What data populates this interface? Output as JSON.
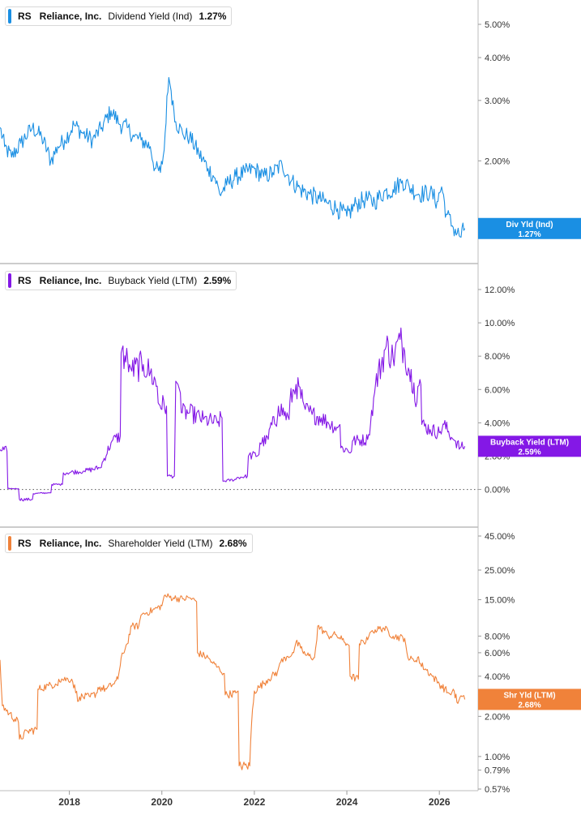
{
  "chart_data": [
    {
      "type": "line",
      "ticker": "RS",
      "company": "Reliance, Inc.",
      "metric": "Dividend Yield (Ind)",
      "latest_value": "1.27%",
      "badge_label": "Div Yld (Ind)",
      "badge_value": "1.27%",
      "color": "#1a8fe3",
      "scale": "log",
      "ylim": [
        1.15,
        5.0
      ],
      "y_ticks": [
        {
          "v": 5.0,
          "label": "5.00%"
        },
        {
          "v": 4.0,
          "label": "4.00%"
        },
        {
          "v": 3.0,
          "label": "3.00%"
        },
        {
          "v": 2.0,
          "label": "2.00%"
        }
      ],
      "noise": 0.05,
      "x": [
        2016.5,
        2016.6,
        2016.75,
        2016.95,
        2017.2,
        2017.4,
        2017.6,
        2017.75,
        2017.9,
        2018.1,
        2018.3,
        2018.5,
        2018.7,
        2018.9,
        2019.1,
        2019.25,
        2019.4,
        2019.55,
        2019.75,
        2019.85,
        2019.97,
        2020.05,
        2020.15,
        2020.2,
        2020.3,
        2020.45,
        2020.6,
        2020.8,
        2021.0,
        2021.15,
        2021.25,
        2021.4,
        2021.6,
        2021.8,
        2022.0,
        2022.2,
        2022.4,
        2022.6,
        2022.8,
        2023.0,
        2023.2,
        2023.4,
        2023.6,
        2023.8,
        2024.0,
        2024.2,
        2024.4,
        2024.6,
        2024.8,
        2025.0,
        2025.2,
        2025.35,
        2025.55,
        2025.8,
        2025.95,
        2026.05,
        2026.15,
        2026.3,
        2026.45,
        2026.55
      ],
      "values": [
        2.5,
        2.2,
        2.05,
        2.25,
        2.5,
        2.35,
        2.0,
        2.2,
        2.3,
        2.55,
        2.4,
        2.3,
        2.5,
        2.8,
        2.55,
        2.5,
        2.35,
        2.3,
        2.2,
        1.9,
        1.85,
        2.15,
        3.5,
        3.2,
        2.6,
        2.4,
        2.35,
        2.1,
        1.9,
        1.78,
        1.6,
        1.7,
        1.8,
        1.85,
        1.9,
        1.8,
        1.85,
        1.95,
        1.75,
        1.65,
        1.6,
        1.55,
        1.5,
        1.45,
        1.38,
        1.5,
        1.55,
        1.52,
        1.62,
        1.65,
        1.75,
        1.68,
        1.6,
        1.62,
        1.52,
        1.68,
        1.4,
        1.28,
        1.2,
        1.27
      ]
    },
    {
      "type": "line",
      "ticker": "RS",
      "company": "Reliance, Inc.",
      "metric": "Buyback Yield (LTM)",
      "latest_value": "2.59%",
      "badge_label": "Buyback Yield (LTM)",
      "badge_value": "2.59%",
      "color": "#8418e6",
      "scale": "linear",
      "ylim": [
        -0.8,
        12.0
      ],
      "zero_line": true,
      "y_ticks": [
        {
          "v": 12.0,
          "label": "12.00%"
        },
        {
          "v": 10.0,
          "label": "10.00%"
        },
        {
          "v": 8.0,
          "label": "8.00%"
        },
        {
          "v": 6.0,
          "label": "6.00%"
        },
        {
          "v": 4.0,
          "label": "4.00%"
        },
        {
          "v": 2.0,
          "label": "2.00%"
        },
        {
          "v": 0.0,
          "label": "0.00%"
        }
      ],
      "noise": 0.12,
      "x": [
        2016.5,
        2016.65,
        2016.67,
        2016.9,
        2016.92,
        2017.2,
        2017.22,
        2017.55,
        2017.6,
        2017.62,
        2017.85,
        2017.87,
        2018.3,
        2018.32,
        2018.65,
        2018.67,
        2018.9,
        2018.92,
        2019.1,
        2019.12,
        2019.3,
        2019.35,
        2019.6,
        2019.75,
        2019.9,
        2019.92,
        2020.1,
        2020.12,
        2020.27,
        2020.3,
        2020.35,
        2020.4,
        2020.42,
        2020.6,
        2020.9,
        2021.2,
        2021.3,
        2021.32,
        2021.6,
        2021.62,
        2021.85,
        2021.87,
        2022.1,
        2022.12,
        2022.3,
        2022.32,
        2022.5,
        2022.52,
        2022.75,
        2022.77,
        2022.9,
        2023.05,
        2023.1,
        2023.25,
        2023.45,
        2023.6,
        2023.8,
        2023.85,
        2023.87,
        2024.1,
        2024.12,
        2024.45,
        2024.47,
        2024.6,
        2024.62,
        2024.85,
        2025.0,
        2025.15,
        2025.25,
        2025.35,
        2025.45,
        2025.47,
        2025.58,
        2025.6,
        2025.62,
        2025.8,
        2026.0,
        2026.1,
        2026.3,
        2026.35,
        2026.45,
        2026.55
      ],
      "values": [
        2.4,
        2.3,
        0.05,
        0.05,
        -0.6,
        -0.6,
        -0.25,
        -0.2,
        -0.2,
        0.3,
        0.3,
        1.0,
        1.1,
        1.1,
        1.3,
        1.3,
        2.8,
        2.9,
        3.2,
        8.2,
        7.5,
        7.1,
        7.5,
        7.0,
        6.2,
        5.2,
        5.0,
        0.8,
        0.8,
        6.5,
        6.3,
        5.8,
        4.6,
        4.6,
        4.2,
        4.0,
        4.3,
        0.5,
        0.6,
        0.7,
        0.8,
        2.0,
        2.1,
        2.8,
        3.0,
        3.6,
        4.3,
        5.0,
        4.2,
        5.3,
        6.3,
        5.3,
        4.8,
        4.5,
        4.3,
        4.0,
        3.7,
        3.9,
        2.5,
        2.3,
        2.9,
        3.0,
        3.3,
        5.8,
        6.3,
        8.6,
        7.9,
        9.0,
        8.3,
        7.1,
        6.4,
        5.3,
        6.6,
        6.3,
        3.9,
        3.6,
        3.4,
        3.9,
        3.0,
        2.9,
        2.5,
        2.59
      ]
    },
    {
      "type": "line",
      "ticker": "RS",
      "company": "Reliance, Inc.",
      "metric": "Shareholder Yield (LTM)",
      "latest_value": "2.68%",
      "badge_label": "Shr Yld (LTM)",
      "badge_value": "2.68%",
      "color": "#f0823a",
      "scale": "log",
      "ylim": [
        0.57,
        45.0
      ],
      "y_ticks": [
        {
          "v": 45.0,
          "label": "45.00%"
        },
        {
          "v": 25.0,
          "label": "25.00%"
        },
        {
          "v": 15.0,
          "label": "15.00%"
        },
        {
          "v": 8.0,
          "label": "8.00%"
        },
        {
          "v": 6.0,
          "label": "6.00%"
        },
        {
          "v": 4.0,
          "label": "4.00%"
        },
        {
          "v": 2.0,
          "label": "2.00%"
        },
        {
          "v": 1.0,
          "label": "1.00%"
        },
        {
          "v": 0.79,
          "label": "0.79%"
        },
        {
          "v": 0.57,
          "label": "0.57%"
        }
      ],
      "noise": 0.06,
      "x": [
        2016.5,
        2016.52,
        2016.55,
        2016.7,
        2016.9,
        2016.92,
        2017.1,
        2017.3,
        2017.32,
        2017.55,
        2017.7,
        2017.75,
        2017.77,
        2018.05,
        2018.2,
        2018.22,
        2018.45,
        2018.6,
        2018.62,
        2018.8,
        2018.95,
        2019.05,
        2019.1,
        2019.12,
        2019.25,
        2019.35,
        2019.5,
        2019.55,
        2019.8,
        2020.0,
        2020.05,
        2020.25,
        2020.45,
        2020.6,
        2020.75,
        2020.77,
        2021.0,
        2021.1,
        2021.25,
        2021.35,
        2021.37,
        2021.6,
        2021.65,
        2021.67,
        2021.9,
        2022.0,
        2022.1,
        2022.3,
        2022.5,
        2022.55,
        2022.7,
        2022.85,
        2022.9,
        2023.0,
        2023.1,
        2023.3,
        2023.35,
        2023.37,
        2023.6,
        2023.75,
        2023.9,
        2024.0,
        2024.05,
        2024.07,
        2024.25,
        2024.27,
        2024.45,
        2024.5,
        2024.55,
        2024.8,
        2025.0,
        2025.25,
        2025.3,
        2025.32,
        2025.45,
        2025.55,
        2025.57,
        2025.85,
        2026.0,
        2026.2,
        2026.25,
        2026.3,
        2026.4,
        2026.45,
        2026.55
      ],
      "values": [
        5.3,
        3.8,
        2.4,
        2.1,
        1.8,
        1.35,
        1.55,
        1.6,
        3.2,
        3.4,
        3.5,
        3.4,
        3.8,
        3.8,
        2.6,
        2.8,
        2.8,
        3.0,
        3.3,
        3.2,
        3.5,
        3.8,
        4.8,
        5.5,
        7.0,
        9.5,
        9.5,
        11.5,
        12.5,
        13.5,
        16.0,
        15.5,
        15.2,
        15.5,
        14.5,
        6.0,
        5.5,
        5.0,
        4.5,
        4.2,
        2.9,
        3.0,
        3.1,
        0.85,
        0.85,
        3.1,
        3.3,
        3.8,
        4.3,
        5.0,
        5.6,
        6.0,
        7.2,
        6.5,
        5.8,
        5.5,
        7.5,
        9.5,
        8.0,
        8.2,
        7.5,
        7.0,
        6.8,
        4.0,
        3.8,
        7.0,
        7.5,
        8.5,
        8.8,
        9.2,
        8.0,
        7.7,
        6.0,
        5.5,
        5.2,
        5.6,
        5.0,
        4.0,
        3.5,
        3.0,
        2.9,
        3.2,
        2.5,
        2.8,
        2.68
      ]
    }
  ],
  "x_axis": {
    "range": [
      2016.5,
      2026.75
    ],
    "ticks": [
      2018,
      2020,
      2022,
      2024,
      2026
    ],
    "tick_labels": [
      "2018",
      "2020",
      "2022",
      "2024",
      "2026"
    ]
  }
}
